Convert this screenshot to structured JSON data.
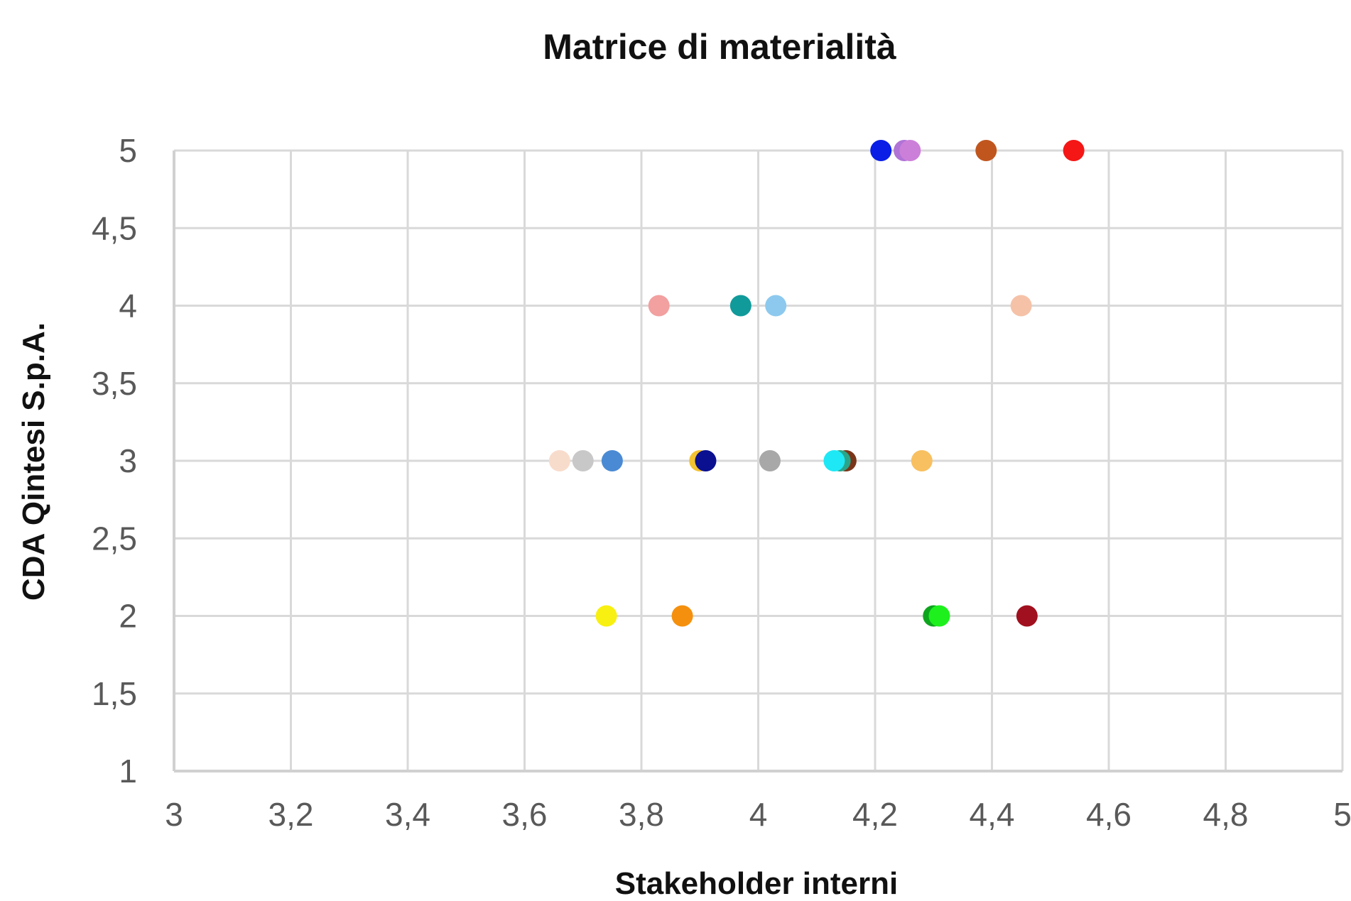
{
  "chart_data": {
    "type": "scatter",
    "title": "Matrice di materialità",
    "xlabel": "Stakeholder interni",
    "ylabel": "CDA Qintesi S.p.A.",
    "xlim": [
      3,
      5
    ],
    "ylim": [
      1,
      5
    ],
    "x_ticks": [
      "3",
      "3,2",
      "3,4",
      "3,6",
      "3,8",
      "4",
      "4,2",
      "4,4",
      "4,6",
      "4,8",
      "5"
    ],
    "y_ticks": [
      "1",
      "1,5",
      "2",
      "2,5",
      "3",
      "3,5",
      "4",
      "4,5",
      "5"
    ],
    "grid": true,
    "legend": "none",
    "points": [
      {
        "x": 4.21,
        "y": 5,
        "color": "#0a1ee6"
      },
      {
        "x": 4.25,
        "y": 5,
        "color": "#b073d6"
      },
      {
        "x": 4.26,
        "y": 5,
        "color": "#cc7fd9"
      },
      {
        "x": 4.39,
        "y": 5,
        "color": "#c0561e"
      },
      {
        "x": 4.54,
        "y": 5,
        "color": "#f51616"
      },
      {
        "x": 3.83,
        "y": 4,
        "color": "#f2a0a0"
      },
      {
        "x": 3.97,
        "y": 4,
        "color": "#119a9a"
      },
      {
        "x": 4.03,
        "y": 4,
        "color": "#8dc9ee"
      },
      {
        "x": 4.45,
        "y": 4,
        "color": "#f5c2a8"
      },
      {
        "x": 3.66,
        "y": 3,
        "color": "#f8dccb"
      },
      {
        "x": 3.7,
        "y": 3,
        "color": "#c8c8c8"
      },
      {
        "x": 3.75,
        "y": 3,
        "color": "#4a8ad4"
      },
      {
        "x": 3.9,
        "y": 3,
        "color": "#f2c230"
      },
      {
        "x": 3.91,
        "y": 3,
        "color": "#0a1090"
      },
      {
        "x": 4.02,
        "y": 3,
        "color": "#a8a8a8"
      },
      {
        "x": 4.15,
        "y": 3,
        "color": "#7a3518"
      },
      {
        "x": 4.14,
        "y": 3,
        "color": "#2aa58a"
      },
      {
        "x": 4.13,
        "y": 3,
        "color": "#1ee8f5"
      },
      {
        "x": 4.28,
        "y": 3,
        "color": "#f8c060"
      },
      {
        "x": 3.74,
        "y": 2,
        "color": "#f8f010"
      },
      {
        "x": 3.87,
        "y": 2,
        "color": "#f5900e"
      },
      {
        "x": 4.3,
        "y": 2,
        "color": "#0ea51e"
      },
      {
        "x": 4.31,
        "y": 2,
        "color": "#1ef01e"
      },
      {
        "x": 4.46,
        "y": 2,
        "color": "#a0101e"
      }
    ]
  }
}
